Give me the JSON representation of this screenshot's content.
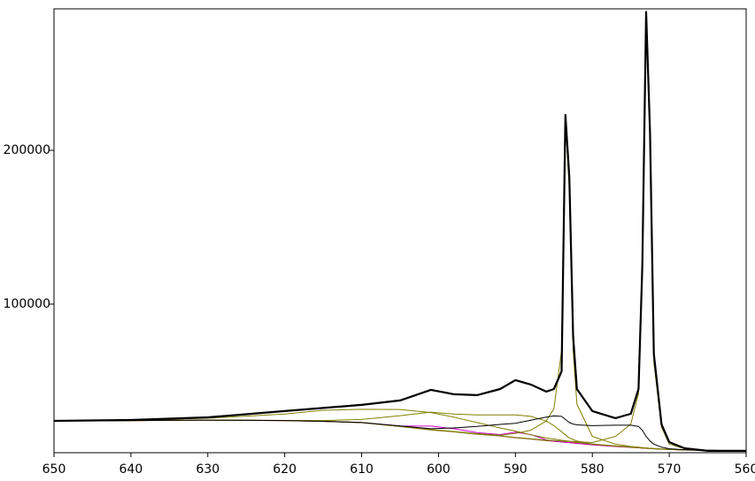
{
  "chart_data": {
    "type": "line",
    "x": [
      650,
      640,
      630,
      620,
      615,
      610,
      605,
      601,
      598,
      595,
      592,
      590,
      588,
      586,
      585,
      584,
      583.5,
      583,
      582.5,
      582,
      580,
      577,
      575,
      574,
      573.5,
      573,
      572.5,
      572,
      571,
      570,
      568,
      565,
      560
    ],
    "xlim": [
      650,
      560
    ],
    "xticks": [
      650,
      640,
      630,
      620,
      610,
      600,
      590,
      580,
      570,
      560
    ],
    "ylim": [
      3400,
      292000
    ],
    "yticks": [
      100000,
      200000
    ],
    "series": [
      {
        "color": "#a0522d",
        "width": 1.2,
        "values": [
          24100,
          24300,
          24600,
          24300,
          23800,
          23000,
          20500,
          18300,
          17000,
          15500,
          14300,
          13200,
          12300,
          11300,
          10900,
          10400,
          10200,
          10000,
          9700,
          9500,
          8600,
          7500,
          6900,
          6600,
          6400,
          6300,
          6100,
          6000,
          5700,
          5500,
          5200,
          4900,
          4600
        ]
      },
      {
        "color": "#d000d0",
        "width": 1,
        "values": [
          24100,
          24300,
          24600,
          24300,
          23800,
          23000,
          20800,
          20700,
          19000,
          16500,
          15200,
          16700,
          15200,
          11800,
          10900,
          10400,
          10200,
          10000,
          9700,
          9500,
          8600,
          7500,
          6900,
          6600,
          6400,
          6300,
          6100,
          6000,
          5700,
          5500,
          5200,
          4900,
          4600
        ]
      },
      {
        "color": "#808000",
        "width": 1,
        "values": [
          24100,
          24800,
          25800,
          28500,
          31000,
          31600,
          31500,
          29500,
          26500,
          23000,
          19500,
          17500,
          15000,
          13000,
          12300,
          11500,
          11200,
          10900,
          10500,
          10200,
          9100,
          7900,
          7200,
          6900,
          6700,
          6500,
          6300,
          6100,
          5800,
          5600,
          5300,
          4900,
          4600
        ]
      },
      {
        "color": "#808000",
        "width": 1,
        "values": [
          24100,
          24300,
          24600,
          24400,
          24300,
          25000,
          27500,
          29800,
          28500,
          28000,
          28000,
          28000,
          27000,
          24000,
          21000,
          17000,
          15000,
          13000,
          12000,
          11000,
          9000,
          7700,
          7000,
          6700,
          6500,
          6300,
          6100,
          6000,
          5700,
          5500,
          5200,
          4900,
          4600
        ]
      },
      {
        "color": "#808000",
        "width": 1,
        "values": [
          24100,
          24300,
          24600,
          24300,
          23800,
          23000,
          20600,
          18500,
          17200,
          15800,
          14800,
          16000,
          18000,
          24000,
          32000,
          70000,
          220000,
          175000,
          70000,
          35000,
          14000,
          9000,
          7500,
          7000,
          6700,
          6500,
          6200,
          6000,
          5700,
          5500,
          5200,
          4900,
          4600
        ]
      },
      {
        "color": "#808000",
        "width": 1,
        "values": [
          24100,
          24300,
          24600,
          24300,
          23800,
          23000,
          20500,
          18300,
          17000,
          15500,
          14300,
          13300,
          12500,
          11600,
          11300,
          11000,
          10900,
          10800,
          10700,
          10600,
          10000,
          14000,
          22000,
          42000,
          120000,
          288000,
          205000,
          62000,
          20000,
          9000,
          6000,
          4900,
          4600
        ]
      },
      {
        "color": "#000000",
        "width": 1,
        "values": [
          24100,
          24300,
          24600,
          24300,
          23800,
          23000,
          20800,
          19000,
          19500,
          20500,
          21800,
          22500,
          24500,
          26500,
          27300,
          27000,
          25000,
          23000,
          22000,
          21500,
          21000,
          21300,
          21300,
          20500,
          18000,
          14000,
          11000,
          9000,
          7000,
          6000,
          5300,
          4900,
          4600
        ]
      },
      {
        "color": "#000000",
        "width": 2.2,
        "values": [
          24100,
          24700,
          26400,
          30500,
          32500,
          34500,
          37400,
          44250,
          41400,
          40800,
          44800,
          50600,
          47700,
          43100,
          44800,
          56300,
          223000,
          182800,
          79300,
          44800,
          30500,
          25900,
          28700,
          44800,
          125000,
          290000,
          211500,
          67800,
          21800,
          10300,
          6300,
          4600,
          4600
        ]
      }
    ]
  }
}
